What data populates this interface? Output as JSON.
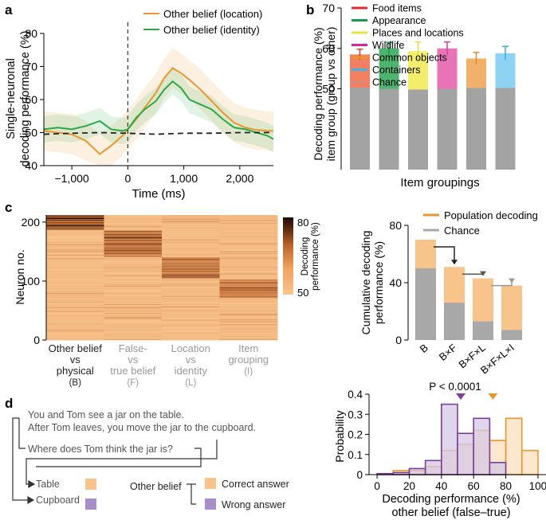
{
  "panel_labels": {
    "a": "a",
    "b": "b",
    "c": "c",
    "d": "d"
  },
  "colors": {
    "orange": "#e8962e",
    "orange_light": "#f9c48c",
    "green": "#2aa84a",
    "gray": "#9e9e9e",
    "purple": "#7b3f98",
    "purple_light": "#c3aed6"
  },
  "chart_data": [
    {
      "id": "a",
      "type": "line",
      "xlabel": "Time (ms)",
      "ylabel": "Single-neuronal decoding performance (%)",
      "ylabel_lines": [
        "Single-neuronal",
        "decoding performance (%)"
      ],
      "xlim": [
        -1500,
        2600
      ],
      "ylim": [
        40,
        80
      ],
      "xticks": [
        -1000,
        0,
        1000,
        2000
      ],
      "xtick_labels": [
        "−1,000",
        "0",
        "1,000",
        "2,000"
      ],
      "yticks": [
        40,
        50,
        60,
        70,
        80
      ],
      "ytick_labels": [
        "40",
        "50",
        "60",
        "70",
        "80"
      ],
      "event_line_x": 0,
      "series": [
        {
          "name": "Other belief (location)",
          "color": "#e8962e",
          "x": [
            -1500,
            -1250,
            -1000,
            -750,
            -500,
            -300,
            -100,
            0,
            150,
            300,
            500,
            650,
            800,
            950,
            1100,
            1300,
            1500,
            1700,
            1900,
            2100,
            2300,
            2500,
            2600
          ],
          "values": [
            50.5,
            50.0,
            49.5,
            47.5,
            43.5,
            46.0,
            49.0,
            51.0,
            54.0,
            57.5,
            62.0,
            66.5,
            69.5,
            68.0,
            66.0,
            63.0,
            59.5,
            56.0,
            53.0,
            51.5,
            50.8,
            50.5,
            50.5
          ],
          "band": 6
        },
        {
          "name": "Other belief (identity)",
          "color": "#2aa84a",
          "x": [
            -1500,
            -1250,
            -1000,
            -750,
            -500,
            -300,
            -100,
            0,
            150,
            300,
            500,
            650,
            800,
            950,
            1100,
            1300,
            1500,
            1700,
            1900,
            2100,
            2300,
            2500,
            2600
          ],
          "values": [
            51.0,
            51.5,
            51.0,
            52.0,
            53.5,
            51.0,
            50.5,
            51.0,
            54.5,
            57.0,
            59.5,
            63.0,
            65.5,
            63.5,
            60.0,
            58.5,
            57.0,
            54.0,
            51.5,
            51.0,
            50.0,
            49.0,
            48.0
          ],
          "band": 4
        },
        {
          "name": "Chance",
          "color": "#222222",
          "dashed": true,
          "x": [
            -1500,
            -1000,
            -500,
            0,
            500,
            1000,
            1500,
            2000,
            2600
          ],
          "values": [
            49.5,
            49.8,
            50.0,
            49.8,
            49.5,
            49.8,
            49.8,
            50.0,
            50.0
          ]
        }
      ],
      "legend": [
        "Other belief (location)",
        "Other belief (identity)"
      ]
    },
    {
      "id": "b",
      "type": "bar",
      "xlabel": "Item groupings",
      "ylabel": "Decoding performance (%) item group (group vs other)",
      "ylabel_lines": [
        "Decoding performance (%)",
        "item group (group vs other)"
      ],
      "ylim": [
        30,
        70
      ],
      "yticks": [
        50,
        60,
        70
      ],
      "ytick_labels": [
        "50",
        "60",
        "70"
      ],
      "categories": [
        "Food items",
        "Appearance",
        "Places and locations",
        "Wildlife",
        "Common objects",
        "Containers"
      ],
      "values": [
        58.5,
        60.0,
        59.3,
        60.0,
        57.5,
        58.8
      ],
      "errors": [
        1.3,
        1.5,
        2.3,
        1.6,
        1.5,
        1.7
      ],
      "chance_values": [
        50.3,
        50.0,
        49.8,
        50.0,
        50.2,
        50.2
      ],
      "bar_colors": [
        "#f47f61",
        "#4cb46e",
        "#f2ee6c",
        "#e873b6",
        "#f2b16a",
        "#8fd3f2"
      ],
      "error_colors": [
        "#d6402a",
        "#1b9a48",
        "#e6dc3a",
        "#d63f96",
        "#e08a35",
        "#3aaee6"
      ],
      "legend": [
        {
          "label": "Food items",
          "color": "#e02d2d",
          "style": "solid"
        },
        {
          "label": "Appearance",
          "color": "#1a9a48",
          "style": "solid"
        },
        {
          "label": "Places and locations",
          "color": "#e8e23a",
          "style": "solid"
        },
        {
          "label": "Wildlife",
          "color": "#d6269b",
          "style": "solid"
        },
        {
          "label": "Common objects",
          "color": "#e8962e",
          "style": "solid"
        },
        {
          "label": "Containers",
          "color": "#35b8e8",
          "style": "solid"
        },
        {
          "label": "Chance",
          "color": "#9e9e9e",
          "style": "dashed"
        }
      ]
    },
    {
      "id": "c_heatmap",
      "type": "heatmap",
      "ylabel": "Neuron no.",
      "ylim": [
        0,
        212
      ],
      "yticks": [
        0,
        100,
        200
      ],
      "ytick_labels": [
        "0",
        "100",
        "200"
      ],
      "colorbar": {
        "min": 50,
        "max": 80,
        "min_label": "50",
        "max_label": "80",
        "label": "Decoding performance (%)",
        "label_lines": [
          "Decoding",
          "performance (%)"
        ]
      },
      "columns": [
        {
          "lines": [
            "Other belief",
            "vs",
            "physical",
            "(B)"
          ],
          "color": "#222222"
        },
        {
          "lines": [
            "False-",
            "vs",
            "true belief",
            "(F)"
          ],
          "color": "#999999"
        },
        {
          "lines": [
            "Location",
            "vs",
            "identity",
            "(L)"
          ],
          "color": "#999999"
        },
        {
          "lines": [
            "Item",
            "grouping",
            "(I)"
          ],
          "color": "#999999"
        }
      ],
      "n_neurons": 212
    },
    {
      "id": "c_bar",
      "type": "bar",
      "ylabel": "Cumulative decoding performance (%)",
      "ylabel_lines": [
        "Cumulative decoding",
        "performance (%)"
      ],
      "ylim": [
        0,
        80
      ],
      "yticks": [
        0,
        40,
        80
      ],
      "ytick_labels": [
        "0",
        "40",
        "80"
      ],
      "categories": [
        "B",
        "B×F",
        "B×F×L",
        "B×F×L×I"
      ],
      "series": [
        {
          "name": "Population decoding",
          "color": "#f9c48c",
          "values": [
            70,
            51,
            43,
            38
          ]
        },
        {
          "name": "Chance",
          "color": "#a8a8a8",
          "values": [
            50,
            26,
            13,
            7
          ]
        }
      ],
      "legend": [
        "Population decoding",
        "Chance"
      ]
    },
    {
      "id": "d_hist",
      "type": "bar",
      "xlabel": "Decoding performance (%) other belief (false–true)",
      "xlabel_lines": [
        "Decoding performance (%)",
        "other belief (false–true)"
      ],
      "ylabel": "Probability",
      "xlim": [
        -5,
        105
      ],
      "ylim": [
        0,
        0.4
      ],
      "xticks": [
        0,
        20,
        40,
        60,
        80,
        100
      ],
      "xtick_labels": [
        "0",
        "20",
        "40",
        "60",
        "80",
        "100"
      ],
      "yticks": [
        0,
        0.1,
        0.2,
        0.3,
        0.4
      ],
      "ytick_labels": [
        "0",
        "0.1",
        "0.2",
        "0.3",
        "0.4"
      ],
      "bin_edges": [
        0,
        10,
        20,
        30,
        40,
        50,
        60,
        70,
        80,
        90,
        100
      ],
      "series": [
        {
          "name": "Wrong answer",
          "color": "#7b3f98",
          "fill": "#d6c8e6",
          "values": [
            0.005,
            0.01,
            0.03,
            0.07,
            0.35,
            0.205,
            0.28,
            0.06,
            0.0,
            0.0
          ]
        },
        {
          "name": "Correct answer",
          "color": "#e8962e",
          "fill": "#fbe0bd",
          "values": [
            0.0,
            0.02,
            0.02,
            0.04,
            0.12,
            0.15,
            0.22,
            0.17,
            0.28,
            0.12
          ]
        }
      ],
      "annotation": "P < 0.0001",
      "marker_wrong": 52,
      "marker_correct": 72
    }
  ],
  "panel_d": {
    "story_line1": "You and Tom see a jar on the table.",
    "story_line2": "After Tom leaves, you move the jar to the cupboard.",
    "question": "Where does Tom think the jar is?",
    "option_table": "Table",
    "option_cupboard": "Cupboard",
    "legend_title": "Other belief",
    "legend_correct": "Correct answer",
    "legend_wrong": "Wrong answer"
  }
}
